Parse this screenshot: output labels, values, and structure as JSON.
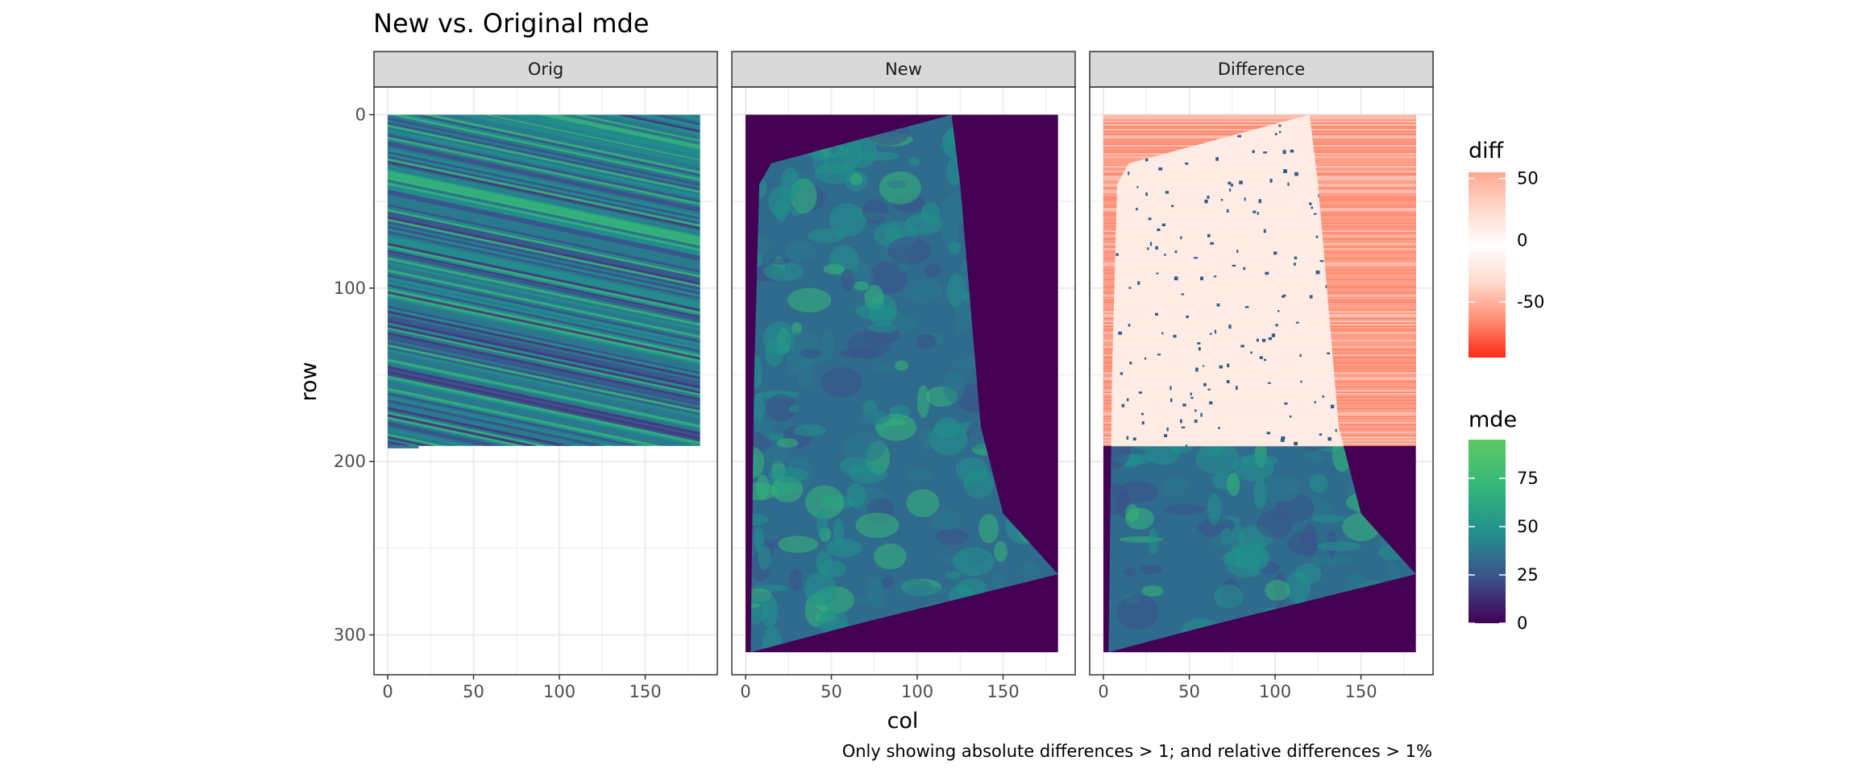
{
  "chart_data": {
    "type": "heatmap",
    "title": "New vs. Original mde",
    "xlabel": "col",
    "ylabel": "row",
    "caption": "Only showing absolute differences > 1; and relative differences > 1%",
    "panels": [
      {
        "name": "Orig"
      },
      {
        "name": "New"
      },
      {
        "name": "Difference"
      }
    ],
    "xlim": [
      -8,
      192
    ],
    "xticks": [
      0,
      50,
      100,
      150
    ],
    "ylim": [
      323,
      -16
    ],
    "yticks": [
      0,
      100,
      200,
      300
    ],
    "grid": true,
    "orig_extent": {
      "cols": [
        0,
        182
      ],
      "rows": [
        0,
        191
      ]
    },
    "new_field": {
      "extent": {
        "cols": [
          0,
          182
        ],
        "rows": [
          0,
          310
        ]
      },
      "footprint_polygon": [
        [
          15,
          28
        ],
        [
          120,
          0
        ],
        [
          125,
          40
        ],
        [
          137,
          180
        ],
        [
          150,
          230
        ],
        [
          182,
          265
        ],
        [
          60,
          295
        ],
        [
          3,
          310
        ],
        [
          5,
          150
        ],
        [
          8,
          40
        ]
      ]
    },
    "difference_extent": {
      "cols": [
        0,
        182
      ],
      "rows": [
        0,
        191
      ]
    },
    "legends": [
      {
        "title": "diff",
        "position": "right",
        "colors": [
          "#ff2a1a",
          "#ff8c70",
          "#ffd9cc",
          "#ffffff",
          "#ffd9cc",
          "#ffa890"
        ],
        "range": [
          -95,
          55
        ],
        "breaks": [
          50,
          0,
          -50
        ],
        "labels": [
          "50",
          "0",
          "-50"
        ]
      },
      {
        "title": "mde",
        "position": "right",
        "colors": [
          "#440154",
          "#3b528b",
          "#21918c",
          "#35b779",
          "#5ec962"
        ],
        "range": [
          0,
          95
        ],
        "breaks": [
          75,
          50,
          25,
          0
        ],
        "labels": [
          "75",
          "50",
          "25",
          "0"
        ]
      }
    ]
  }
}
